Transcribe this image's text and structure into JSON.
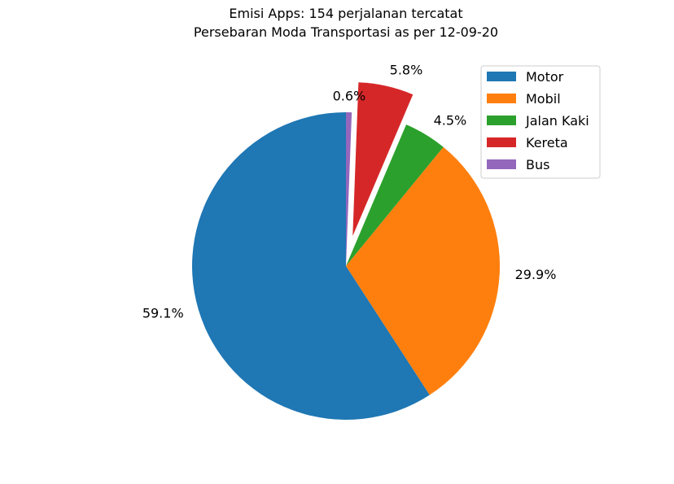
{
  "chart_data": {
    "type": "pie",
    "title_line1": "Emisi Apps: 154 perjalanan tercatat",
    "title_line2": "Persebaran Moda Transportasi as per 12-09-20",
    "start_angle_deg": 90,
    "direction": "counterclockwise",
    "legend_position": "top-right",
    "slices": [
      {
        "name": "Motor",
        "value": 59.1,
        "label": "59.1%",
        "color": "#1f77b4",
        "explode": 0
      },
      {
        "name": "Mobil",
        "value": 29.9,
        "label": "29.9%",
        "color": "#ff7f0e",
        "explode": 0
      },
      {
        "name": "Jalan Kaki",
        "value": 4.5,
        "label": "4.5%",
        "color": "#2ca02c",
        "explode": 0
      },
      {
        "name": "Kereta",
        "value": 5.8,
        "label": "5.8%",
        "color": "#d62728",
        "explode": 0.2
      },
      {
        "name": "Bus",
        "value": 0.6,
        "label": "0.6%",
        "color": "#9467bd",
        "explode": 0
      }
    ]
  }
}
